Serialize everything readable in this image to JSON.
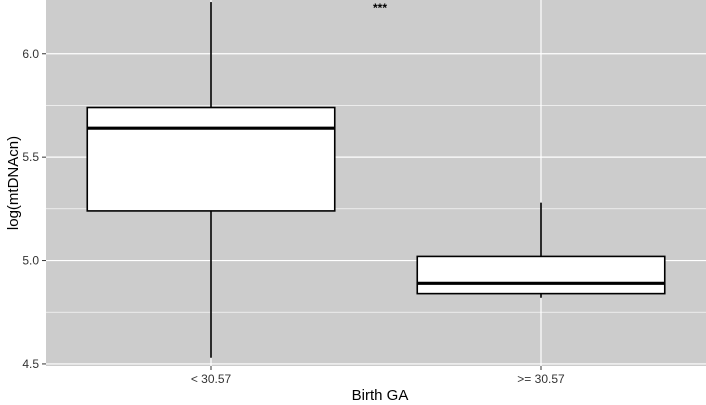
{
  "chart_data": {
    "type": "boxplot",
    "title": "",
    "xlabel": "Birth GA",
    "ylabel": "log(mtDNAcn)",
    "ylim": [
      4.49,
      6.26
    ],
    "yticks": [
      4.5,
      5.0,
      5.5,
      6.0
    ],
    "ytick_labels": [
      "4.5",
      "5.0",
      "5.5",
      "6.0"
    ],
    "categories": [
      "< 30.57",
      ">= 30.57"
    ],
    "boxes": [
      {
        "category": "< 30.57",
        "min": 4.53,
        "q1": 5.24,
        "median": 5.64,
        "q3": 5.74,
        "max": 6.25
      },
      {
        "category": ">= 30.57",
        "min": 4.82,
        "q1": 4.84,
        "median": 4.89,
        "q3": 5.02,
        "max": 5.28
      }
    ],
    "annotation": "***",
    "grid": true,
    "colors": {
      "panel": "#cccccc",
      "grid": "#ffffff",
      "box_fill": "#ffffff",
      "box_stroke": "#000000"
    }
  }
}
